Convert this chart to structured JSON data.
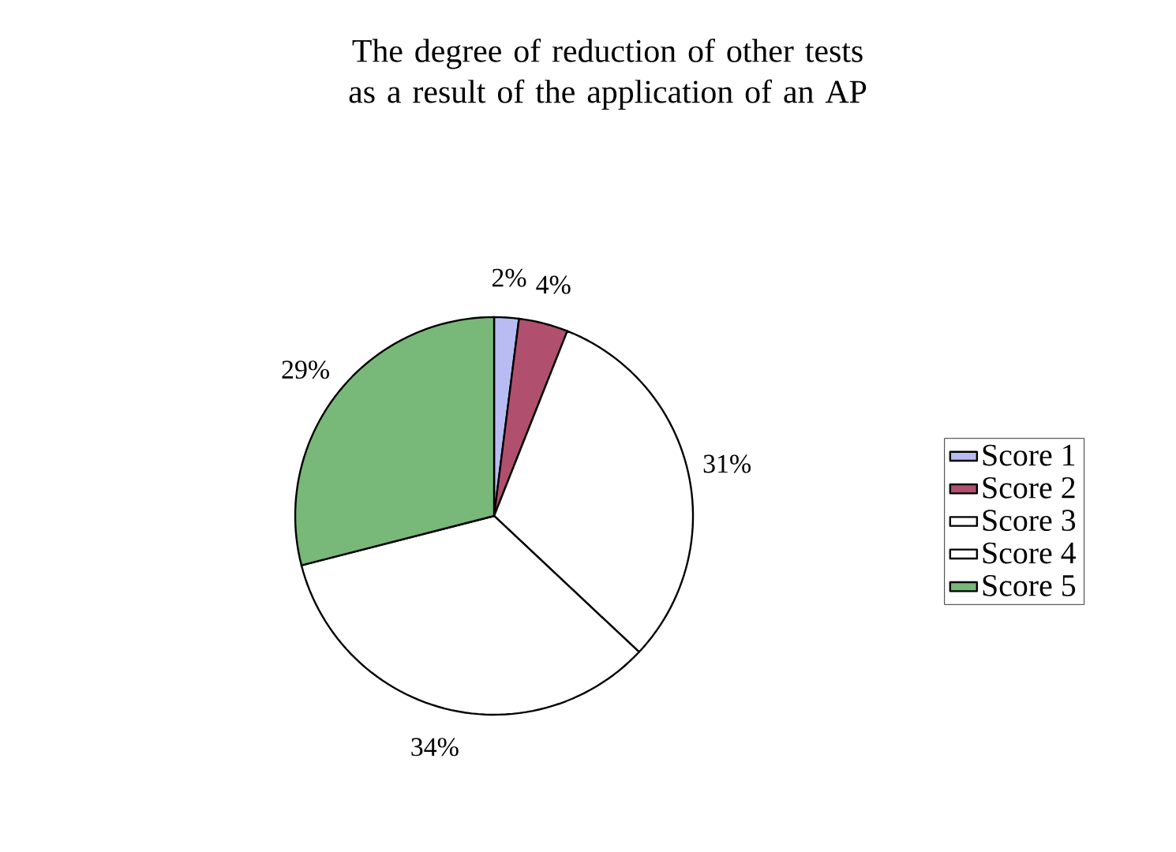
{
  "chart_data": {
    "type": "pie",
    "title": "The degree of reduction of other tests as a result of the application of an AP",
    "categories": [
      "Score 1",
      "Score 2",
      "Score 3",
      "Score 4",
      "Score 5"
    ],
    "values": [
      2,
      4,
      31,
      34,
      29
    ],
    "value_labels": [
      "2%",
      "4%",
      "31%",
      "34%",
      "29%"
    ],
    "colors": [
      "#b8bcf2",
      "#b0506e",
      "#ffffff",
      "#ffffff",
      "#78b878"
    ],
    "legend": "right"
  }
}
